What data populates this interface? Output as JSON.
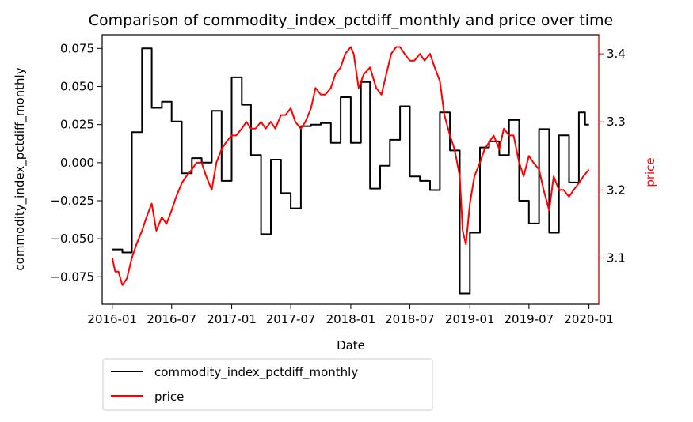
{
  "chart_data": {
    "type": "line",
    "title": "Comparison of commodity_index_pctdiff_monthly and price over time",
    "xlabel": "Date",
    "ylabel_left": "commodity_index_pctdiff_monthly",
    "ylabel_right": "price",
    "xlim": [
      "2015-12-01",
      "2020-01-31"
    ],
    "ylim_left": [
      -0.093,
      0.084
    ],
    "ylim_right": [
      3.032,
      3.428
    ],
    "x_ticks": [
      "2016-01",
      "2016-07",
      "2017-01",
      "2017-07",
      "2018-01",
      "2018-07",
      "2019-01",
      "2019-07",
      "2020-01"
    ],
    "y_ticks_left": [
      "−0.075",
      "−0.050",
      "−0.025",
      "0.000",
      "0.025",
      "0.050",
      "0.075"
    ],
    "y_ticks_right": [
      "3.1",
      "3.2",
      "3.3",
      "3.4"
    ],
    "legend_placement": "below-left",
    "grid": false,
    "colors": {
      "commodity_index_pctdiff_monthly": "#000000",
      "price": "#ff0000",
      "right_axis": "#ff0000"
    },
    "series": [
      {
        "name": "commodity_index_pctdiff_monthly",
        "axis": "left",
        "step": true,
        "points": [
          [
            "2016-01-01",
            -0.057
          ],
          [
            "2016-02-01",
            -0.059
          ],
          [
            "2016-03-01",
            0.02
          ],
          [
            "2016-04-01",
            0.075
          ],
          [
            "2016-05-01",
            0.036
          ],
          [
            "2016-06-01",
            0.04
          ],
          [
            "2016-07-01",
            0.027
          ],
          [
            "2016-08-01",
            -0.007
          ],
          [
            "2016-09-01",
            0.003
          ],
          [
            "2016-10-01",
            0.0
          ],
          [
            "2016-11-01",
            0.034
          ],
          [
            "2016-12-01",
            -0.012
          ],
          [
            "2017-01-01",
            0.056
          ],
          [
            "2017-02-01",
            0.038
          ],
          [
            "2017-03-01",
            0.005
          ],
          [
            "2017-04-01",
            -0.047
          ],
          [
            "2017-05-01",
            0.002
          ],
          [
            "2017-06-01",
            -0.02
          ],
          [
            "2017-07-01",
            -0.03
          ],
          [
            "2017-08-01",
            0.024
          ],
          [
            "2017-09-01",
            0.025
          ],
          [
            "2017-10-01",
            0.026
          ],
          [
            "2017-11-01",
            0.013
          ],
          [
            "2017-12-01",
            0.043
          ],
          [
            "2018-01-01",
            0.013
          ],
          [
            "2018-02-01",
            0.053
          ],
          [
            "2018-03-01",
            -0.017
          ],
          [
            "2018-04-01",
            -0.002
          ],
          [
            "2018-05-01",
            0.015
          ],
          [
            "2018-06-01",
            0.037
          ],
          [
            "2018-07-01",
            -0.009
          ],
          [
            "2018-08-01",
            -0.012
          ],
          [
            "2018-09-01",
            -0.018
          ],
          [
            "2018-10-01",
            0.033
          ],
          [
            "2018-11-01",
            0.008
          ],
          [
            "2018-12-01",
            -0.086
          ],
          [
            "2019-01-01",
            -0.046
          ],
          [
            "2019-02-01",
            0.01
          ],
          [
            "2019-03-01",
            0.014
          ],
          [
            "2019-04-01",
            0.005
          ],
          [
            "2019-05-01",
            0.028
          ],
          [
            "2019-06-01",
            -0.025
          ],
          [
            "2019-07-01",
            -0.04
          ],
          [
            "2019-08-01",
            0.022
          ],
          [
            "2019-09-01",
            -0.046
          ],
          [
            "2019-10-01",
            0.018
          ],
          [
            "2019-11-01",
            -0.013
          ],
          [
            "2019-12-01",
            0.033
          ],
          [
            "2019-12-20",
            0.025
          ],
          [
            "2020-01-01",
            0.025
          ]
        ]
      },
      {
        "name": "price",
        "axis": "right",
        "step": false,
        "points": [
          [
            "2016-01-01",
            3.1
          ],
          [
            "2016-01-10",
            3.08
          ],
          [
            "2016-01-20",
            3.08
          ],
          [
            "2016-02-01",
            3.06
          ],
          [
            "2016-02-15",
            3.07
          ],
          [
            "2016-03-01",
            3.1
          ],
          [
            "2016-03-15",
            3.12
          ],
          [
            "2016-04-01",
            3.14
          ],
          [
            "2016-04-15",
            3.16
          ],
          [
            "2016-05-01",
            3.18
          ],
          [
            "2016-05-15",
            3.14
          ],
          [
            "2016-06-01",
            3.16
          ],
          [
            "2016-06-15",
            3.15
          ],
          [
            "2016-07-01",
            3.17
          ],
          [
            "2016-07-15",
            3.19
          ],
          [
            "2016-08-01",
            3.21
          ],
          [
            "2016-08-15",
            3.22
          ],
          [
            "2016-09-01",
            3.23
          ],
          [
            "2016-09-15",
            3.24
          ],
          [
            "2016-10-01",
            3.24
          ],
          [
            "2016-10-15",
            3.22
          ],
          [
            "2016-11-01",
            3.2
          ],
          [
            "2016-11-15",
            3.24
          ],
          [
            "2016-12-01",
            3.26
          ],
          [
            "2016-12-15",
            3.27
          ],
          [
            "2017-01-01",
            3.28
          ],
          [
            "2017-01-15",
            3.28
          ],
          [
            "2017-02-01",
            3.29
          ],
          [
            "2017-02-15",
            3.3
          ],
          [
            "2017-03-01",
            3.29
          ],
          [
            "2017-03-15",
            3.29
          ],
          [
            "2017-04-01",
            3.3
          ],
          [
            "2017-04-15",
            3.29
          ],
          [
            "2017-05-01",
            3.3
          ],
          [
            "2017-05-15",
            3.29
          ],
          [
            "2017-06-01",
            3.31
          ],
          [
            "2017-06-15",
            3.31
          ],
          [
            "2017-07-01",
            3.32
          ],
          [
            "2017-07-15",
            3.3
          ],
          [
            "2017-08-01",
            3.29
          ],
          [
            "2017-08-15",
            3.3
          ],
          [
            "2017-09-01",
            3.32
          ],
          [
            "2017-09-15",
            3.35
          ],
          [
            "2017-10-01",
            3.34
          ],
          [
            "2017-10-15",
            3.34
          ],
          [
            "2017-11-01",
            3.35
          ],
          [
            "2017-11-15",
            3.37
          ],
          [
            "2017-12-01",
            3.38
          ],
          [
            "2017-12-15",
            3.4
          ],
          [
            "2018-01-01",
            3.41
          ],
          [
            "2018-01-10",
            3.4
          ],
          [
            "2018-01-25",
            3.35
          ],
          [
            "2018-02-10",
            3.37
          ],
          [
            "2018-03-01",
            3.38
          ],
          [
            "2018-03-20",
            3.35
          ],
          [
            "2018-04-05",
            3.34
          ],
          [
            "2018-04-20",
            3.37
          ],
          [
            "2018-05-05",
            3.4
          ],
          [
            "2018-05-20",
            3.41
          ],
          [
            "2018-06-01",
            3.41
          ],
          [
            "2018-06-15",
            3.4
          ],
          [
            "2018-07-01",
            3.39
          ],
          [
            "2018-07-15",
            3.39
          ],
          [
            "2018-08-01",
            3.4
          ],
          [
            "2018-08-15",
            3.39
          ],
          [
            "2018-09-01",
            3.4
          ],
          [
            "2018-09-15",
            3.38
          ],
          [
            "2018-10-01",
            3.36
          ],
          [
            "2018-10-15",
            3.31
          ],
          [
            "2018-11-01",
            3.28
          ],
          [
            "2018-11-15",
            3.26
          ],
          [
            "2018-12-01",
            3.22
          ],
          [
            "2018-12-10",
            3.14
          ],
          [
            "2018-12-20",
            3.12
          ],
          [
            "2019-01-01",
            3.18
          ],
          [
            "2019-01-15",
            3.22
          ],
          [
            "2019-02-01",
            3.24
          ],
          [
            "2019-02-15",
            3.26
          ],
          [
            "2019-03-01",
            3.27
          ],
          [
            "2019-03-15",
            3.28
          ],
          [
            "2019-04-01",
            3.26
          ],
          [
            "2019-04-15",
            3.29
          ],
          [
            "2019-05-01",
            3.28
          ],
          [
            "2019-05-15",
            3.28
          ],
          [
            "2019-06-01",
            3.24
          ],
          [
            "2019-06-15",
            3.22
          ],
          [
            "2019-07-01",
            3.25
          ],
          [
            "2019-07-15",
            3.24
          ],
          [
            "2019-08-01",
            3.23
          ],
          [
            "2019-08-15",
            3.2
          ],
          [
            "2019-09-01",
            3.17
          ],
          [
            "2019-09-15",
            3.22
          ],
          [
            "2019-10-01",
            3.2
          ],
          [
            "2019-10-15",
            3.2
          ],
          [
            "2019-11-01",
            3.19
          ],
          [
            "2019-11-15",
            3.2
          ],
          [
            "2019-12-01",
            3.21
          ],
          [
            "2019-12-15",
            3.22
          ],
          [
            "2020-01-01",
            3.23
          ]
        ]
      }
    ]
  }
}
